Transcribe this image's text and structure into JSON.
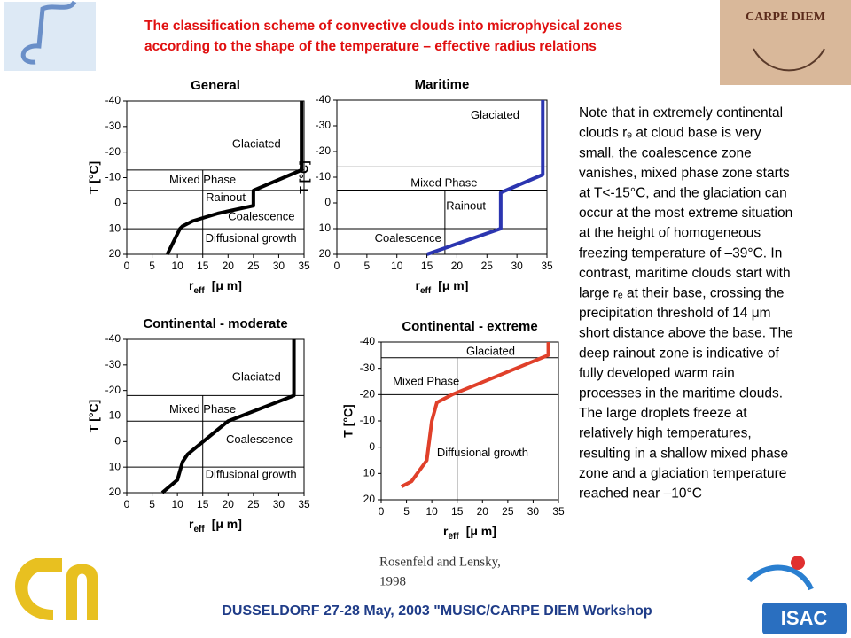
{
  "header": {
    "lines": [
      "The classification scheme of convective clouds into microphysical zones",
      "according to the shape of the temperature – effective radius relations"
    ]
  },
  "logos": {
    "sundial": "CARPE DIEM",
    "institute": "ISAC"
  },
  "chart_data": [
    {
      "type": "line",
      "title": "General",
      "color": "#000000",
      "x": [
        8,
        10.5,
        11,
        13,
        18,
        25,
        25,
        34.5,
        34.5
      ],
      "values": [
        20,
        10,
        9,
        7,
        4,
        1,
        -5,
        -13,
        -40
      ],
      "xlim": [
        0,
        35
      ],
      "ylim": [
        20,
        -40
      ],
      "xticks": [
        0,
        5,
        10,
        15,
        20,
        25,
        30,
        35
      ],
      "yticks": [
        -40,
        -30,
        -20,
        -10,
        0,
        10,
        20
      ],
      "x_label": {
        "symbol": "r",
        "subscript": "eff",
        "unit": "[μ m]"
      },
      "y_label": "T [°C]",
      "zone_lines": [
        -13,
        -5,
        10
      ],
      "threshold": {
        "x": 15,
        "from": -13
      },
      "annotations": [
        "Glaciated",
        "Mixed Phase",
        "Rainout",
        "Coalescence",
        "Diffusional growth"
      ]
    },
    {
      "type": "line",
      "title": "Maritime",
      "color": "#2b35b0",
      "x": [
        15,
        27.3,
        27.3,
        34.3,
        34.3
      ],
      "values": [
        20,
        10,
        -4,
        -11,
        -40
      ],
      "xlim": [
        0,
        35
      ],
      "ylim": [
        20,
        -40
      ],
      "xticks": [
        0,
        5,
        10,
        15,
        20,
        25,
        30,
        35
      ],
      "yticks": [
        -40,
        -30,
        -20,
        -10,
        0,
        10,
        20
      ],
      "x_label": {
        "symbol": "r",
        "subscript": "eff",
        "unit": "[μ m]"
      },
      "y_label": "T [°C]",
      "zone_lines": [
        -14,
        -5,
        10
      ],
      "threshold": {
        "x": 18,
        "from": -5
      },
      "annotations": [
        "Glaciated",
        "Mixed Phase",
        "Rainout",
        "Coalescence"
      ]
    },
    {
      "type": "line",
      "title": "Continental - moderate",
      "color": "#000000",
      "x": [
        7,
        10,
        11,
        12,
        20,
        33,
        33
      ],
      "values": [
        20,
        15,
        8,
        5,
        -8,
        -18,
        -40
      ],
      "xlim": [
        0,
        35
      ],
      "ylim": [
        20,
        -40
      ],
      "xticks": [
        0,
        5,
        10,
        15,
        20,
        25,
        30,
        35
      ],
      "yticks": [
        -40,
        -30,
        -20,
        -10,
        0,
        10,
        20
      ],
      "x_label": {
        "symbol": "r",
        "subscript": "eff",
        "unit": "[μ m]"
      },
      "y_label": "T [°C]",
      "zone_lines": [
        -18,
        -8,
        10
      ],
      "threshold": {
        "x": 15,
        "from": -18
      },
      "annotations": [
        "Glaciated",
        "Mixed Phase",
        "Coalescence",
        "Diffusional growth"
      ]
    },
    {
      "type": "line",
      "title": "Continental - extreme",
      "color": "#e0402a",
      "x": [
        4,
        6,
        9,
        10,
        11,
        14,
        33,
        33
      ],
      "values": [
        15,
        13,
        5,
        -10,
        -17,
        -20,
        -35,
        -40
      ],
      "xlim": [
        0,
        35
      ],
      "ylim": [
        20,
        -40
      ],
      "xticks": [
        0,
        5,
        10,
        15,
        20,
        25,
        30,
        35
      ],
      "yticks": [
        -40,
        -30,
        -20,
        -10,
        0,
        10,
        20
      ],
      "x_label": {
        "symbol": "r",
        "subscript": "eff",
        "unit": "[μ m]"
      },
      "y_label": "T [°C]",
      "zone_lines": [
        -34,
        -20
      ],
      "threshold": {
        "x": 15,
        "from": -34
      },
      "annotations": [
        "Glaciated",
        "Mixed Phase",
        "Diffusional growth"
      ]
    }
  ],
  "note": {
    "lines": [
      "Note that in extremely continental",
      "clouds rₑ at cloud base is very",
      "small, the coalescence zone",
      "vanishes, mixed phase zone starts",
      "at T<-15°C, and the glaciation can",
      "occur at the most extreme situation",
      "at the height of homogeneous",
      "freezing temperature of –39°C. In",
      "contrast, maritime clouds start with",
      "large rₑ at their base, crossing the",
      "precipitation threshold of 14 μm",
      "short distance above the base. The",
      "deep rainout zone is indicative of",
      "fully developed warm rain",
      "processes in the maritime clouds.",
      "The large droplets freeze at",
      "relatively high temperatures,",
      "resulting in a shallow mixed phase",
      "zone and a glaciation temperature",
      "reached near –10°C"
    ]
  },
  "citation": {
    "lines": [
      "Rosenfeld and Lensky,",
      "1998"
    ]
  },
  "footer": "DUSSELDORF 27-28 May, 2003 \"MUSIC/CARPE DIEM Workshop"
}
